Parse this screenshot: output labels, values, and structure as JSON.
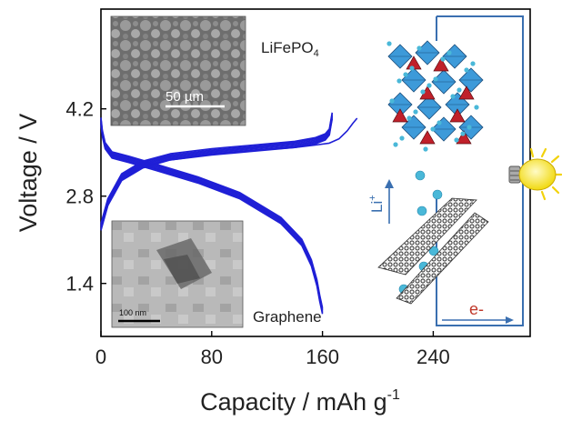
{
  "chart_data": {
    "type": "line",
    "xlabel_main": "Capacity / mAh g",
    "xlabel_sup": "-1",
    "ylabel": "Voltage / V",
    "xlim": [
      0,
      310
    ],
    "ylim": [
      0.55,
      5.8
    ],
    "xticks": [
      "0",
      "80",
      "160",
      "240"
    ],
    "xtick_values": [
      0,
      80,
      160,
      240
    ],
    "yticks": [
      "1.4",
      "2.8",
      "4.2"
    ],
    "ytick_values": [
      1.4,
      2.8,
      4.2
    ],
    "series": [
      {
        "curve": "charge",
        "color": "#1f1fd6",
        "x": [
          0,
          5,
          15,
          30,
          50,
          80,
          110,
          140,
          155,
          162,
          165,
          166,
          167
        ],
        "y": [
          2.3,
          2.7,
          3.1,
          3.3,
          3.42,
          3.5,
          3.56,
          3.62,
          3.68,
          3.74,
          3.82,
          3.95,
          4.08
        ]
      },
      {
        "curve": "charge-long",
        "color": "#1f1fd6",
        "x": [
          0,
          5,
          15,
          30,
          50,
          80,
          110,
          140,
          155,
          165,
          172,
          178,
          182,
          185
        ],
        "y": [
          2.25,
          2.65,
          3.05,
          3.25,
          3.38,
          3.47,
          3.53,
          3.58,
          3.62,
          3.65,
          3.72,
          3.85,
          3.97,
          4.05
        ]
      },
      {
        "curve": "discharge",
        "color": "#1f1fd6",
        "x": [
          0,
          1,
          3,
          8,
          20,
          40,
          70,
          100,
          130,
          145,
          152,
          156,
          158,
          160
        ],
        "y": [
          4.0,
          3.8,
          3.6,
          3.45,
          3.38,
          3.25,
          3.05,
          2.8,
          2.4,
          2.05,
          1.72,
          1.4,
          1.15,
          0.95
        ]
      }
    ],
    "annotations": [
      "LiFePO4",
      "50 µm",
      "100 nm",
      "Graphene",
      "Li+",
      "e-"
    ]
  },
  "labels": {
    "sem_material_main": "LiFePO",
    "sem_material_sub": "4",
    "sem_scale": "50 µm",
    "tem_scale": "100 nm",
    "tem_material": "Graphene",
    "li_label_main": "Li",
    "li_label_sup": "+",
    "electron_label": "e-"
  },
  "icons": [
    "light-bulb-icon",
    "lifepo4-crystal-structure-icon",
    "graphene-sheet-icon",
    "lithium-ion-icon",
    "electron-arrow-icon"
  ],
  "colors": {
    "curves": "#1f1fd6",
    "circuit": "#3a6fb0",
    "li_arrow": "#3a6fb0",
    "electron_arrow": "#c0392b",
    "octahedra": "#3d9ad9",
    "tetrahedra": "#c0202a",
    "ions": "#4ab8d8",
    "bulb": "#f6e21a"
  }
}
